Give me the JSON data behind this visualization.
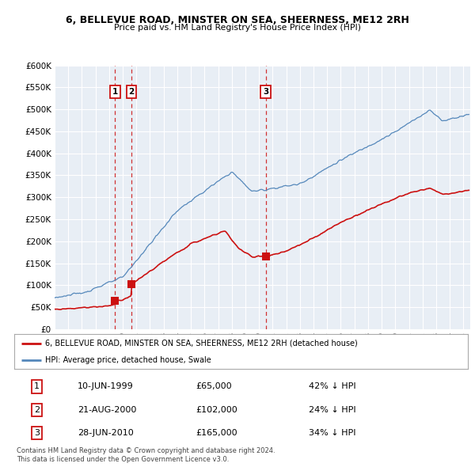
{
  "title": "6, BELLEVUE ROAD, MINSTER ON SEA, SHEERNESS, ME12 2RH",
  "subtitle": "Price paid vs. HM Land Registry's House Price Index (HPI)",
  "background_color": "#ffffff",
  "plot_bg_color": "#e8eef5",
  "grid_color": "#ffffff",
  "hpi_color": "#5588bb",
  "price_color": "#cc1111",
  "transactions": [
    {
      "label": "1",
      "date_x": 1999.44,
      "price": 65000
    },
    {
      "label": "2",
      "date_x": 2000.64,
      "price": 102000
    },
    {
      "label": "3",
      "date_x": 2010.49,
      "price": 165000
    }
  ],
  "legend_line1": "6, BELLEVUE ROAD, MINSTER ON SEA, SHEERNESS, ME12 2RH (detached house)",
  "legend_line2": "HPI: Average price, detached house, Swale",
  "table_rows": [
    [
      "1",
      "10-JUN-1999",
      "£65,000",
      "42% ↓ HPI"
    ],
    [
      "2",
      "21-AUG-2000",
      "£102,000",
      "24% ↓ HPI"
    ],
    [
      "3",
      "28-JUN-2010",
      "£165,000",
      "34% ↓ HPI"
    ]
  ],
  "footnote1": "Contains HM Land Registry data © Crown copyright and database right 2024.",
  "footnote2": "This data is licensed under the Open Government Licence v3.0.",
  "xmin": 1995.0,
  "xmax": 2025.5,
  "ymin": 0,
  "ymax": 600000,
  "ytop_label": 600000
}
